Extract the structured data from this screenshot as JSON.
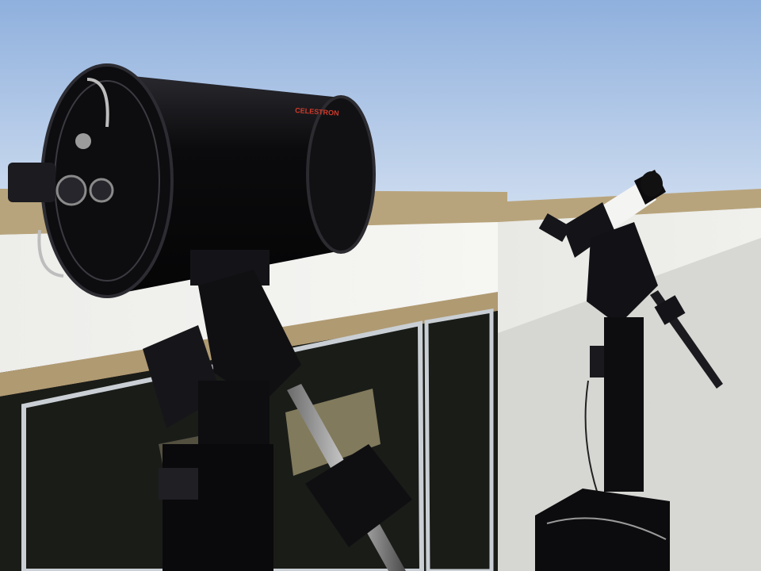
{
  "scene": {
    "description_visible_text": {
      "tube_brand": "CELESTRON"
    }
  },
  "colors": {
    "sky_top": "#8fb0dd",
    "sky_bottom": "#d6e2f2",
    "wall": "#f2f2ee",
    "wall_shadow": "#d9d9d6",
    "trim": "#b09a72",
    "glass": "#1a1c18",
    "tube": "#0b0b0d",
    "brand_red": "#d23a2a",
    "refractor_white": "#f4f4f2"
  }
}
